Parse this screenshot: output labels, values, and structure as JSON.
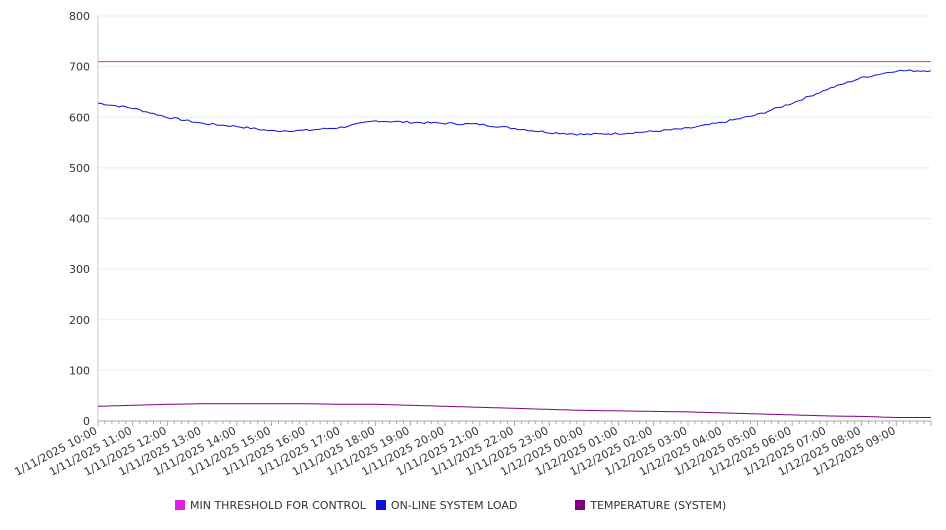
{
  "chart_data": {
    "type": "line",
    "title": "",
    "xlabel": "",
    "ylabel": "",
    "ylim": [
      0,
      800
    ],
    "y_ticks": [
      0,
      100,
      200,
      300,
      400,
      500,
      600,
      700,
      800
    ],
    "grid": "horizontal",
    "legend_position": "bottom",
    "categories": [
      "1/11/2025 10:00",
      "1/11/2025 11:00",
      "1/11/2025 12:00",
      "1/11/2025 13:00",
      "1/11/2025 14:00",
      "1/11/2025 15:00",
      "1/11/2025 16:00",
      "1/11/2025 17:00",
      "1/11/2025 18:00",
      "1/11/2025 19:00",
      "1/11/2025 20:00",
      "1/11/2025 21:00",
      "1/11/2025 22:00",
      "1/11/2025 23:00",
      "1/12/2025 00:00",
      "1/12/2025 01:00",
      "1/12/2025 02:00",
      "1/12/2025 03:00",
      "1/12/2025 04:00",
      "1/12/2025 05:00",
      "1/12/2025 06:00",
      "1/12/2025 07:00",
      "1/12/2025 08:00",
      "1/12/2025 09:00"
    ],
    "series": [
      {
        "name": "MIN THRESHOLD FOR CONTROL",
        "color": "#e020e0",
        "values": [
          710,
          710,
          710,
          710,
          710,
          710,
          710,
          710,
          710,
          710,
          710,
          710,
          710,
          710,
          710,
          710,
          710,
          710,
          710,
          710,
          710,
          710,
          710,
          710
        ]
      },
      {
        "name": "ON-LINE SYSTEM LOAD",
        "color": "#1010e0",
        "values": [
          628,
          618,
          600,
          588,
          582,
          573,
          574,
          580,
          593,
          590,
          588,
          586,
          578,
          570,
          566,
          568,
          572,
          578,
          590,
          605,
          628,
          655,
          678,
          692
        ]
      },
      {
        "name": "TEMPERATURE (SYSTEM)",
        "color": "#800080",
        "values": [
          29,
          31,
          33,
          34,
          34,
          34,
          34,
          33,
          33,
          31,
          29,
          27,
          25,
          23,
          21,
          20,
          19,
          18,
          16,
          14,
          12,
          10,
          9,
          7
        ]
      }
    ]
  }
}
